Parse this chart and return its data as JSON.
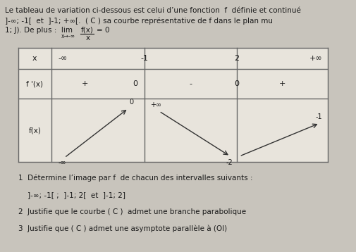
{
  "background_color": "#c8c4bc",
  "text_color": "#1a1a1a",
  "table_bg": "#e8e4dc",
  "table_line_color": "#666666",
  "arrow_color": "#333333",
  "font_size_header": 7.5,
  "font_size_table": 8.0,
  "font_size_small": 7.0,
  "header": [
    "Le tableau de variation ci-dessous est celui d’une fonction  f  définie et continué",
    "]-∞; -1[  et  ]-1; +∞[.  ( C ) sa courbe représentative de f dans le plan mu",
    "1; J). De plus :  lim"
  ],
  "lim_sub": "x→-∞",
  "lim_frac_num": "f(x)",
  "lim_frac_den": "x",
  "lim_eq": "= 0",
  "x_row_vals": [
    "-∞",
    "-1",
    "2",
    "+∞"
  ],
  "fprime_plus1": "+",
  "fprime_zero1": "0",
  "fprime_minus": "-",
  "fprime_zero2": "0",
  "fprime_plus2": "+",
  "f_neg_inf": "-∞",
  "f_zero": "0",
  "f_plus_inf": "+∞",
  "f_minus2": "-2",
  "f_minus1": "-1",
  "questions": [
    "1  Détermine l’image par f  de chacun des intervalles suivants :",
    "    ]-∞; -1[ ;  ]-1; 2[  et  ]-1; 2]",
    "2  Justifie que le courbe ( C )  admet une branche parabolique",
    "3  Justifie que ( C ) admet une asymptote parallèle à (OI)"
  ]
}
